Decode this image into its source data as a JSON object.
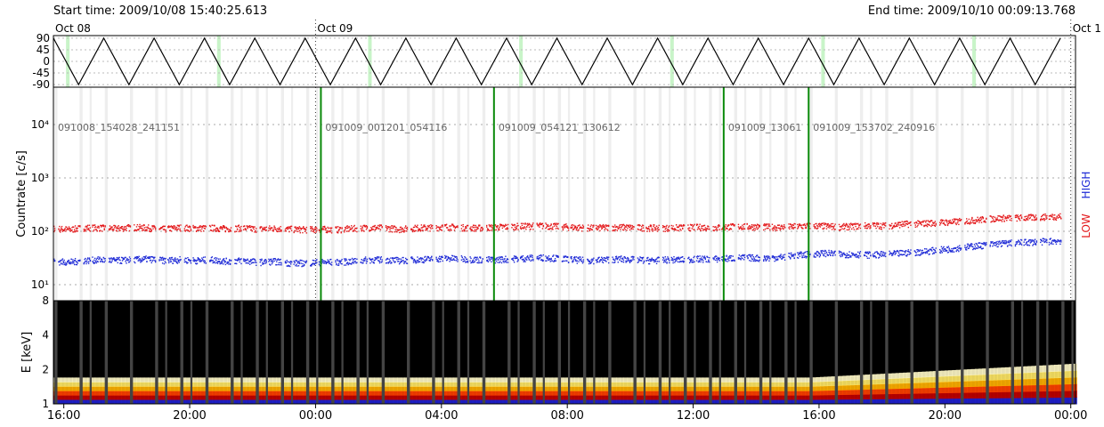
{
  "header": {
    "start_time": "Start time: 2009/10/08 15:40:25.613",
    "end_time": "End time: 2009/10/10 00:09:13.768"
  },
  "date_markers": [
    "Oct 08",
    "Oct 09",
    "Oct 1"
  ],
  "colors": {
    "low": "#e31a1c",
    "high": "#1f2bd6",
    "file_boundary": "#0a8a0a",
    "gap": "#eeeeee",
    "attitude_blue": "#c8c8f4",
    "attitude_red": "#f4c8c8",
    "attitude_green": "#c8f4c8",
    "spectrogram_bg": "#000000",
    "spectrogram_gap": "#444444"
  },
  "chart_data": [
    {
      "type": "line",
      "panel": "attitude",
      "y_ticks": [
        "90",
        "45",
        "0",
        "-45",
        "-90"
      ],
      "ylim": [
        -100,
        100
      ],
      "x_hours": [
        0,
        32.5
      ],
      "triangle_period_hours": 1.6,
      "triangle_range": [
        -90,
        90
      ],
      "grid": true
    },
    {
      "type": "scatter",
      "panel": "countrate",
      "ylabel": "Countrate [c/s]",
      "yscale": "log",
      "ylim": [
        5,
        50000
      ],
      "y_ticks": [
        "10⁴",
        "10³",
        "10²",
        "10¹"
      ],
      "y_tick_values": [
        10000,
        1000,
        100,
        10
      ],
      "right_labels": [
        "LOW",
        "HIGH"
      ],
      "file_labels": [
        "091008_154028_241151",
        "091009_001201_054116",
        "091009_054121_130612",
        "091009_13061",
        "091009_153702_240916"
      ],
      "file_boundaries_hours": [
        8.5,
        14,
        21.3,
        24
      ],
      "x_hours": [
        0,
        0.5,
        1,
        1.5,
        2,
        2.5,
        3,
        3.5,
        4,
        4.5,
        5,
        5.5,
        6,
        6.5,
        7,
        7.5,
        8,
        8.5,
        9,
        9.5,
        10,
        10.5,
        11,
        11.5,
        12,
        12.5,
        13,
        13.5,
        14,
        14.5,
        15,
        15.5,
        16,
        16.5,
        17,
        17.5,
        18,
        18.5,
        19,
        19.5,
        20,
        20.5,
        21,
        21.5,
        22,
        22.5,
        23,
        23.5,
        24,
        24.5,
        25,
        25.5,
        26,
        26.5,
        27,
        27.5,
        28,
        28.5,
        29,
        29.5,
        30,
        30.5,
        31,
        31.5,
        32
      ],
      "series": [
        {
          "name": "LOW",
          "values": [
            115,
            110,
            120,
            118,
            115,
            122,
            118,
            112,
            120,
            116,
            118,
            114,
            118,
            112,
            116,
            112,
            110,
            112,
            110,
            115,
            120,
            118,
            112,
            118,
            120,
            124,
            120,
            118,
            122,
            125,
            128,
            130,
            126,
            122,
            118,
            120,
            122,
            120,
            118,
            118,
            120,
            122,
            120,
            125,
            125,
            124,
            122,
            125,
            130,
            128,
            124,
            128,
            132,
            130,
            140,
            142,
            148,
            152,
            160,
            170,
            180,
            182,
            185,
            190,
            195
          ]
        },
        {
          "name": "HIGH",
          "values": [
            28,
            27,
            29,
            30,
            29,
            30,
            31,
            29,
            30,
            29,
            30,
            28,
            29,
            27,
            28,
            26,
            26,
            27,
            27,
            28,
            30,
            30,
            29,
            30,
            31,
            32,
            31,
            30,
            30,
            31,
            32,
            33,
            32,
            30,
            29,
            30,
            31,
            30,
            29,
            30,
            30,
            31,
            31,
            32,
            33,
            32,
            33,
            36,
            38,
            40,
            38,
            38,
            37,
            38,
            40,
            42,
            45,
            48,
            52,
            56,
            60,
            62,
            64,
            66,
            68
          ]
        }
      ]
    },
    {
      "type": "heatmap",
      "panel": "spectrogram",
      "ylabel": "E [keV]",
      "y_ticks": [
        "8",
        "4",
        "2",
        "1"
      ],
      "y_tick_values": [
        8,
        4,
        2,
        1
      ],
      "ylim": [
        1,
        8
      ],
      "yscale": "log",
      "band_keV": [
        1.0,
        1.7
      ],
      "band_colors": [
        "#fff8c8",
        "#ffe866",
        "#ffb000",
        "#ff4000",
        "#c00000",
        "#2020d0"
      ]
    }
  ],
  "x_axis": {
    "tick_labels": [
      "16:00",
      "20:00",
      "00:00",
      "04:00",
      "08:00",
      "12:00",
      "16:00",
      "20:00",
      "00:00"
    ],
    "tick_hours": [
      0.33,
      4.33,
      8.33,
      12.33,
      16.33,
      20.33,
      24.33,
      28.33,
      32.33
    ],
    "range_hours": [
      0,
      32.48
    ]
  }
}
